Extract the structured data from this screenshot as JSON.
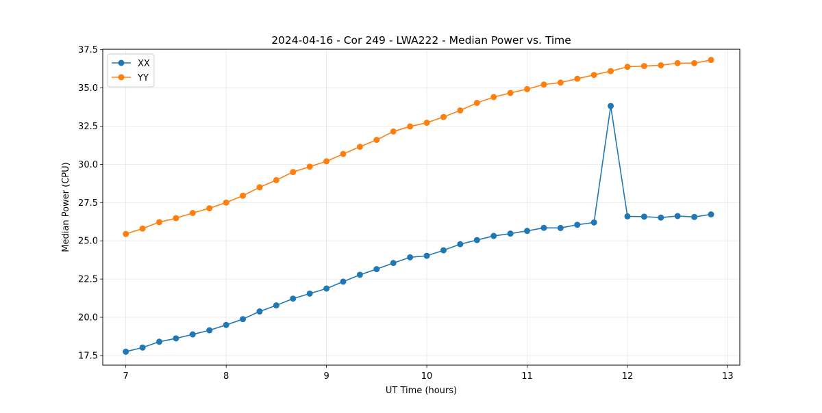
{
  "chart_data": {
    "type": "line",
    "title": "2024-04-16 - Cor 249 - LWA222 - Median Power vs. Time",
    "xlabel": "UT Time (hours)",
    "ylabel": "Median Power (CPU)",
    "xlim": [
      6.77,
      13.12
    ],
    "ylim": [
      16.87,
      37.53
    ],
    "xticks": [
      7,
      8,
      9,
      10,
      11,
      12,
      13
    ],
    "xtick_labels": [
      "7",
      "8",
      "9",
      "10",
      "11",
      "12",
      "13"
    ],
    "yticks": [
      17.5,
      20.0,
      22.5,
      25.0,
      27.5,
      30.0,
      32.5,
      35.0,
      37.5
    ],
    "ytick_labels": [
      "17.5",
      "20.0",
      "22.5",
      "25.0",
      "27.5",
      "30.0",
      "32.5",
      "35.0",
      "37.5"
    ],
    "grid": true,
    "legend_position": "top-left",
    "x": [
      7.0,
      7.1667,
      7.3333,
      7.5,
      7.6667,
      7.8333,
      8.0,
      8.1667,
      8.3333,
      8.5,
      8.6667,
      8.8333,
      9.0,
      9.1667,
      9.3333,
      9.5,
      9.6667,
      9.8333,
      10.0,
      10.1667,
      10.3333,
      10.5,
      10.6667,
      10.8333,
      11.0,
      11.1667,
      11.3333,
      11.5,
      11.6667,
      11.8333,
      12.0,
      12.1667,
      12.3333,
      12.5,
      12.6667,
      12.8333
    ],
    "series": [
      {
        "name": "XX",
        "color": "#1f77b4",
        "values": [
          17.75,
          18.02,
          18.4,
          18.62,
          18.88,
          19.15,
          19.5,
          19.88,
          20.38,
          20.78,
          21.22,
          21.55,
          21.88,
          22.33,
          22.78,
          23.15,
          23.55,
          23.92,
          24.02,
          24.38,
          24.78,
          25.05,
          25.32,
          25.47,
          25.65,
          25.85,
          25.84,
          26.05,
          26.2,
          33.82,
          26.6,
          26.58,
          26.52,
          26.62,
          26.56,
          26.73
        ]
      },
      {
        "name": "YY",
        "color": "#ff7f0e",
        "values": [
          25.45,
          25.8,
          26.22,
          26.48,
          26.82,
          27.13,
          27.5,
          27.95,
          28.5,
          28.97,
          29.5,
          29.85,
          30.2,
          30.68,
          31.15,
          31.6,
          32.15,
          32.48,
          32.72,
          33.1,
          33.53,
          34.02,
          34.4,
          34.67,
          34.92,
          35.22,
          35.35,
          35.6,
          35.85,
          36.1,
          36.38,
          36.43,
          36.48,
          36.62,
          36.62,
          36.83
        ]
      }
    ]
  }
}
